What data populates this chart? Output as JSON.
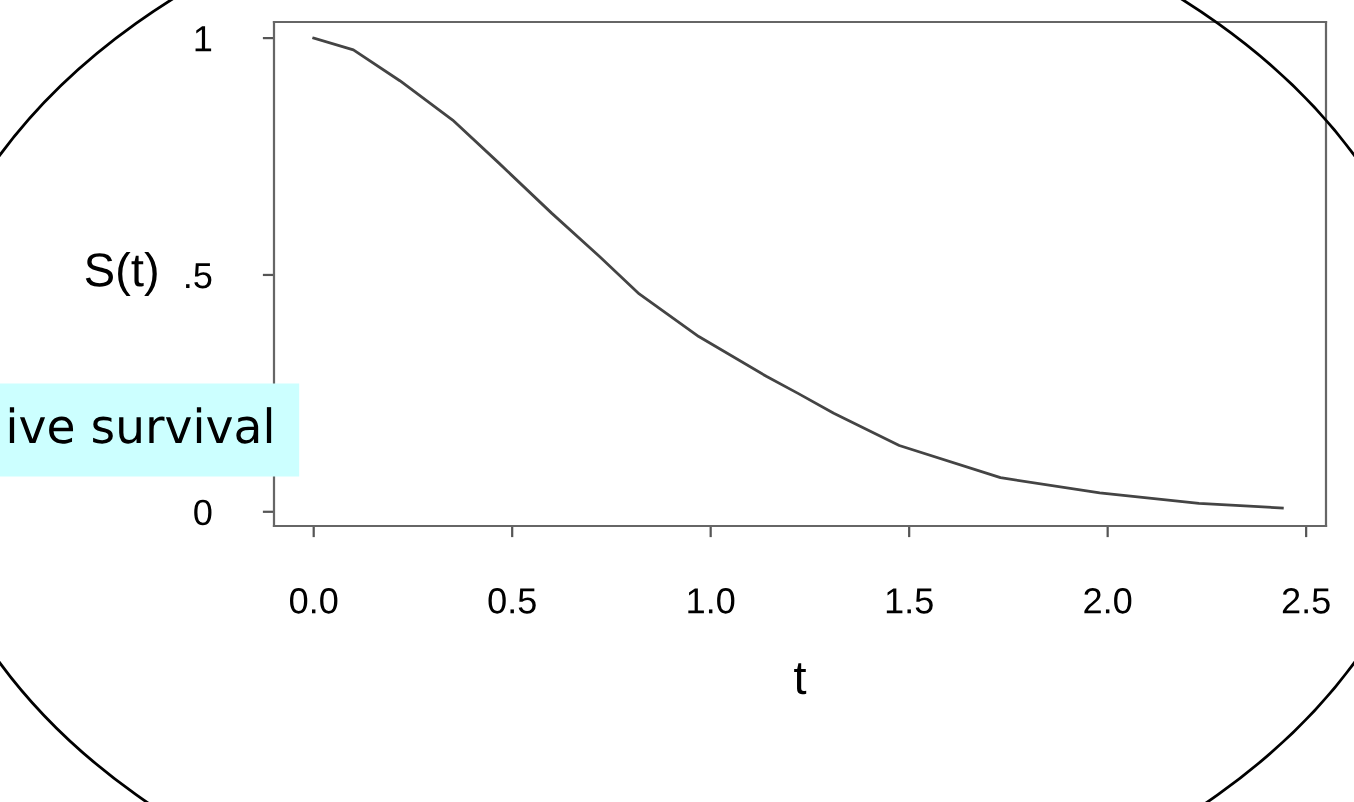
{
  "chart_data": {
    "type": "line",
    "xlabel": "t",
    "ylabel": "S(t)",
    "x": [
      0,
      0.1,
      0.217,
      0.35,
      0.468,
      0.6,
      0.72,
      0.82,
      0.97,
      1.14,
      1.22,
      1.31,
      1.475,
      1.73,
      1.98,
      2.23,
      2.44
    ],
    "series": [
      {
        "color": "#444444",
        "values": [
          1,
          0.975,
          0.91,
          0.827,
          0.735,
          0.63,
          0.539,
          0.46,
          0.37,
          0.286,
          0.25,
          0.208,
          0.14,
          0.072,
          0.04,
          0.018,
          0.008
        ]
      }
    ],
    "xlim": [
      -0.1,
      2.55
    ],
    "ylim": [
      -0.03,
      1.034
    ],
    "xticks": [
      {
        "value": 0,
        "label": "0.0"
      },
      0.5,
      {
        "value": 1,
        "label": "1.0"
      },
      1.5,
      {
        "value": 2,
        "label": "2.0"
      },
      2.5
    ],
    "yticks": [
      0,
      {
        "value": 0.5,
        "label": ".5"
      },
      1
    ],
    "marker": "none",
    "line_style": "solid",
    "annotations": [
      "ive survival"
    ]
  }
}
